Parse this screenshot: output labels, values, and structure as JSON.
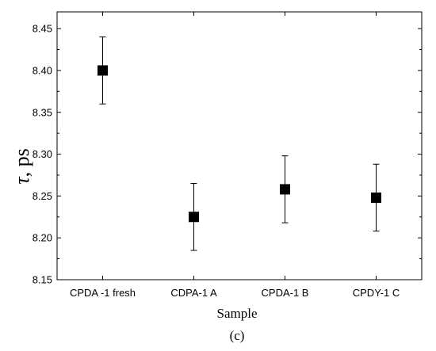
{
  "chart_data": {
    "type": "scatter",
    "categories": [
      "CPDA -1 fresh",
      "CDPA-1 A",
      "CPDA-1 B",
      "CPDY-1 C"
    ],
    "series": [
      {
        "values": [
          8.4,
          8.225,
          8.258,
          8.248
        ],
        "errors": [
          0.04,
          0.04,
          0.04,
          0.04
        ],
        "marker": "square",
        "color": "#000000"
      }
    ],
    "xlabel": "Sample",
    "ylabel_symbol": "τ",
    "ylabel_unit": ", ps",
    "ylim": [
      8.15,
      8.47
    ],
    "yticks": [
      "8.15",
      "8.20",
      "8.25",
      "8.30",
      "8.35",
      "8.40",
      "8.45"
    ],
    "grid": false,
    "legend": "none",
    "caption": "(c)"
  }
}
